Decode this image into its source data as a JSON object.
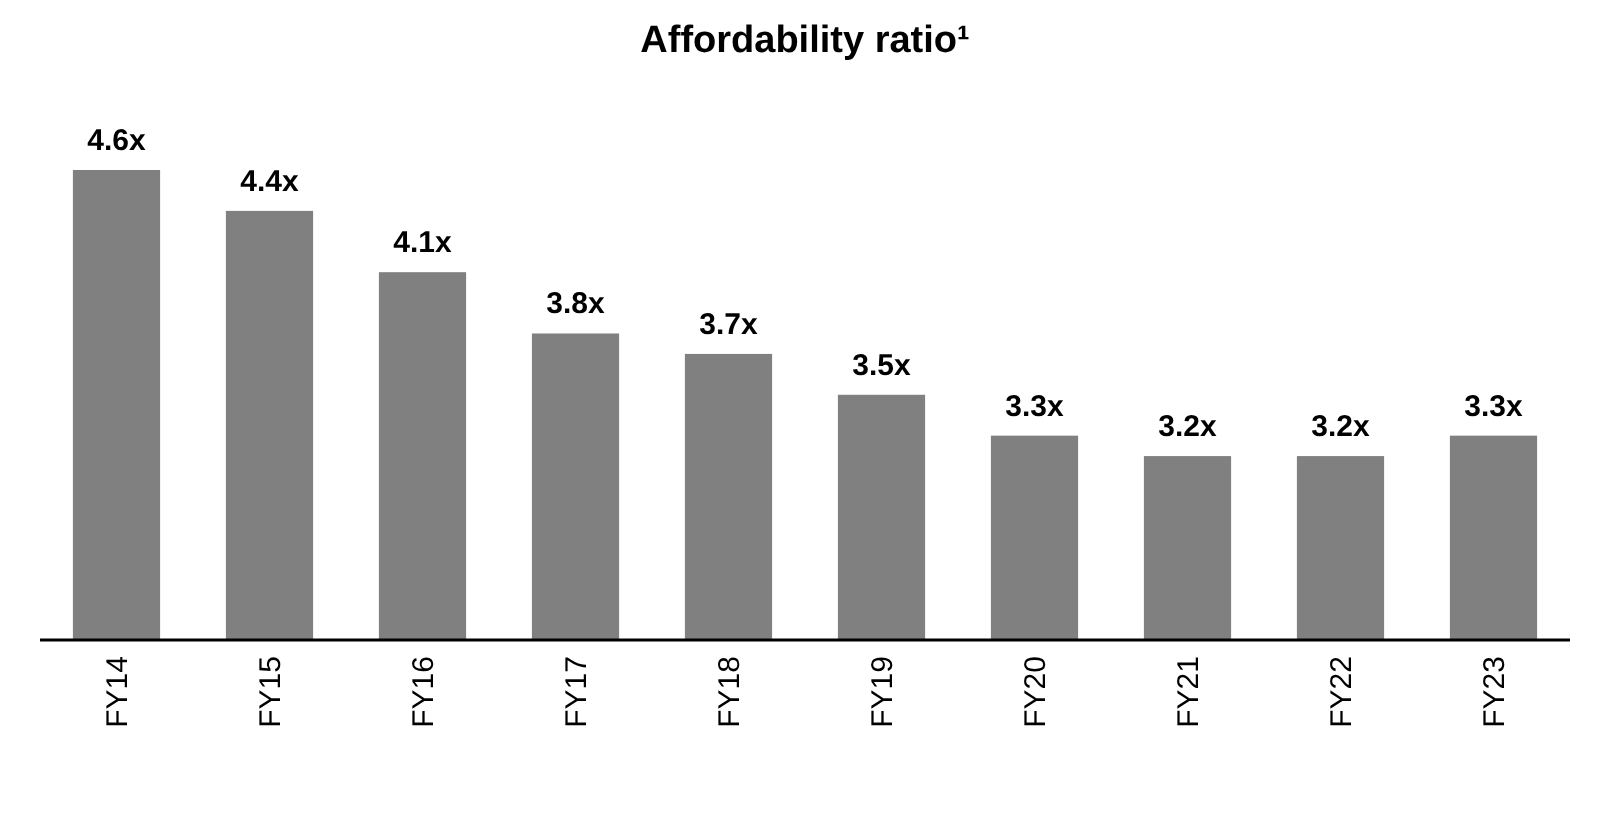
{
  "chart_data": {
    "type": "bar",
    "title": "Affordability ratio¹",
    "categories": [
      "FY14",
      "FY15",
      "FY16",
      "FY17",
      "FY18",
      "FY19",
      "FY20",
      "FY21",
      "FY22",
      "FY23"
    ],
    "values": [
      4.6,
      4.4,
      4.1,
      3.8,
      3.7,
      3.5,
      3.3,
      3.2,
      3.2,
      3.3
    ],
    "value_labels": [
      "4.6x",
      "4.4x",
      "4.1x",
      "3.8x",
      "3.7x",
      "3.5x",
      "3.3x",
      "3.2x",
      "3.2x",
      "3.3x"
    ],
    "color": "#808080",
    "ylim": [
      2.3,
      4.6
    ],
    "tick_labels": "x"
  }
}
